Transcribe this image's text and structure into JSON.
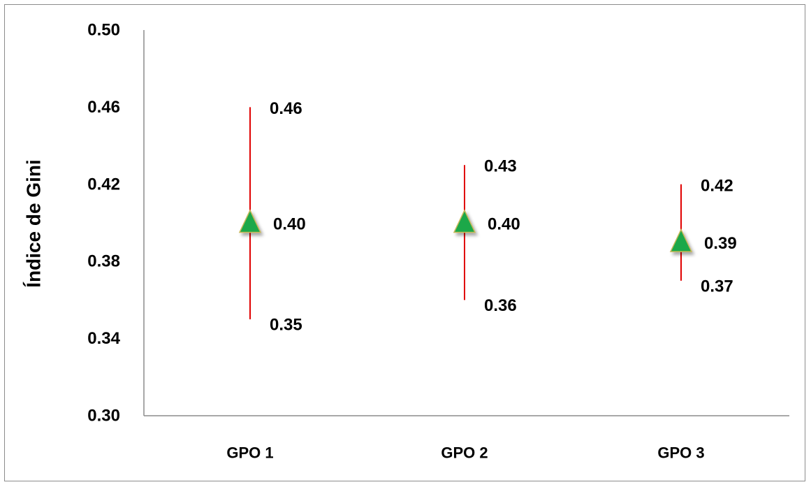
{
  "chart_data": {
    "type": "scatter",
    "title": "",
    "xlabel": "",
    "ylabel": "Índice de Gini",
    "ylim": [
      0.3,
      0.5
    ],
    "yticks": [
      0.3,
      0.34,
      0.38,
      0.42,
      0.46,
      0.5
    ],
    "ytick_labels": [
      "0.30",
      "0.34",
      "0.38",
      "0.42",
      "0.46",
      "0.50"
    ],
    "categories": [
      "GPO 1",
      "GPO 2",
      "GPO 3"
    ],
    "grid": false,
    "legend": "none",
    "series": [
      {
        "values": [
          0.4,
          0.4,
          0.39
        ],
        "lower": [
          0.35,
          0.36,
          0.37
        ],
        "upper": [
          0.46,
          0.43,
          0.42
        ],
        "value_labels": [
          "0.40",
          "0.40",
          "0.39"
        ],
        "lower_labels": [
          "0.35",
          "0.36",
          "0.37"
        ],
        "upper_labels": [
          "0.46",
          "0.43",
          "0.42"
        ]
      }
    ],
    "colors": {
      "marker": "#1aa84a",
      "marker_edge": "#c8b85a",
      "error_bar": "#e00000",
      "axis": "#8c8c8c"
    }
  }
}
